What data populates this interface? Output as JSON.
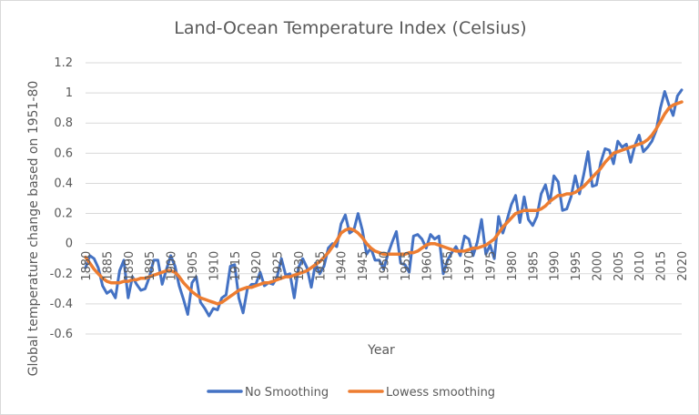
{
  "chart_data": {
    "type": "line",
    "title": "Land-Ocean Temperature Index (Celsius)",
    "xlabel": "Year",
    "ylabel": "Global temperature change based on 1951-80",
    "ylim": [
      -0.6,
      1.2
    ],
    "yticks": [
      "1.2",
      "1",
      "0.8",
      "0.6",
      "0.4",
      "0.2",
      "0",
      "-0.2",
      "-0.4",
      "-0.6"
    ],
    "ytick_values": [
      1.2,
      1.0,
      0.8,
      0.6,
      0.4,
      0.2,
      0,
      -0.2,
      -0.4,
      -0.6
    ],
    "xlim": [
      1880,
      2020
    ],
    "xticks": [
      "1880",
      "1885",
      "1890",
      "1895",
      "1900",
      "1905",
      "1910",
      "1915",
      "1920",
      "1925",
      "1930",
      "1935",
      "1940",
      "1945",
      "1950",
      "1955",
      "1960",
      "1965",
      "1970",
      "1975",
      "1980",
      "1985",
      "1990",
      "1995",
      "2000",
      "2005",
      "2010",
      "2015",
      "2020"
    ],
    "grid": true,
    "legend": "bottom",
    "x": [
      1880,
      1881,
      1882,
      1883,
      1884,
      1885,
      1886,
      1887,
      1888,
      1889,
      1890,
      1891,
      1892,
      1893,
      1894,
      1895,
      1896,
      1897,
      1898,
      1899,
      1900,
      1901,
      1902,
      1903,
      1904,
      1905,
      1906,
      1907,
      1908,
      1909,
      1910,
      1911,
      1912,
      1913,
      1914,
      1915,
      1916,
      1917,
      1918,
      1919,
      1920,
      1921,
      1922,
      1923,
      1924,
      1925,
      1926,
      1927,
      1928,
      1929,
      1930,
      1931,
      1932,
      1933,
      1934,
      1935,
      1936,
      1937,
      1938,
      1939,
      1940,
      1941,
      1942,
      1943,
      1944,
      1945,
      1946,
      1947,
      1948,
      1949,
      1950,
      1951,
      1952,
      1953,
      1954,
      1955,
      1956,
      1957,
      1958,
      1959,
      1960,
      1961,
      1962,
      1963,
      1964,
      1965,
      1966,
      1967,
      1968,
      1969,
      1970,
      1971,
      1972,
      1973,
      1974,
      1975,
      1976,
      1977,
      1978,
      1979,
      1980,
      1981,
      1982,
      1983,
      1984,
      1985,
      1986,
      1987,
      1988,
      1989,
      1990,
      1991,
      1992,
      1993,
      1994,
      1995,
      1996,
      1997,
      1998,
      1999,
      2000,
      2001,
      2002,
      2003,
      2004,
      2005,
      2006,
      2007,
      2008,
      2009,
      2010,
      2011,
      2012,
      2013,
      2014,
      2015,
      2016,
      2017,
      2018,
      2019,
      2020
    ],
    "series": [
      {
        "name": "No Smoothing",
        "color": "#4472c4",
        "values": [
          -0.16,
          -0.08,
          -0.1,
          -0.16,
          -0.28,
          -0.33,
          -0.31,
          -0.36,
          -0.18,
          -0.11,
          -0.36,
          -0.22,
          -0.27,
          -0.31,
          -0.3,
          -0.22,
          -0.11,
          -0.11,
          -0.27,
          -0.17,
          -0.08,
          -0.15,
          -0.28,
          -0.37,
          -0.47,
          -0.26,
          -0.22,
          -0.39,
          -0.43,
          -0.48,
          -0.43,
          -0.44,
          -0.36,
          -0.34,
          -0.15,
          -0.14,
          -0.36,
          -0.46,
          -0.3,
          -0.27,
          -0.27,
          -0.19,
          -0.28,
          -0.26,
          -0.27,
          -0.22,
          -0.1,
          -0.21,
          -0.2,
          -0.36,
          -0.16,
          -0.1,
          -0.16,
          -0.29,
          -0.13,
          -0.2,
          -0.15,
          -0.03,
          0.0,
          -0.02,
          0.13,
          0.19,
          0.07,
          0.09,
          0.2,
          0.09,
          -0.07,
          -0.03,
          -0.11,
          -0.11,
          -0.17,
          -0.07,
          0.01,
          0.08,
          -0.13,
          -0.14,
          -0.19,
          0.05,
          0.06,
          0.03,
          -0.03,
          0.06,
          0.03,
          0.05,
          -0.2,
          -0.11,
          -0.06,
          -0.02,
          -0.08,
          0.05,
          0.03,
          -0.08,
          0.01,
          0.16,
          -0.07,
          -0.01,
          -0.1,
          0.18,
          0.07,
          0.16,
          0.26,
          0.32,
          0.14,
          0.31,
          0.16,
          0.12,
          0.18,
          0.33,
          0.39,
          0.27,
          0.45,
          0.41,
          0.22,
          0.23,
          0.31,
          0.45,
          0.33,
          0.46,
          0.61,
          0.38,
          0.39,
          0.54,
          0.63,
          0.62,
          0.53,
          0.68,
          0.64,
          0.66,
          0.54,
          0.65,
          0.72,
          0.61,
          0.64,
          0.68,
          0.75,
          0.9,
          1.01,
          0.92,
          0.85,
          0.98,
          1.02
        ]
      },
      {
        "name": "Lowess smoothing",
        "color": "#ed7d31",
        "values": [
          -0.09,
          -0.13,
          -0.17,
          -0.2,
          -0.23,
          -0.25,
          -0.26,
          -0.26,
          -0.26,
          -0.25,
          -0.25,
          -0.24,
          -0.24,
          -0.23,
          -0.23,
          -0.22,
          -0.21,
          -0.2,
          -0.19,
          -0.18,
          -0.18,
          -0.19,
          -0.22,
          -0.26,
          -0.29,
          -0.32,
          -0.34,
          -0.36,
          -0.37,
          -0.38,
          -0.39,
          -0.4,
          -0.39,
          -0.37,
          -0.35,
          -0.33,
          -0.31,
          -0.3,
          -0.29,
          -0.29,
          -0.28,
          -0.27,
          -0.26,
          -0.26,
          -0.25,
          -0.24,
          -0.23,
          -0.22,
          -0.22,
          -0.21,
          -0.2,
          -0.19,
          -0.18,
          -0.16,
          -0.14,
          -0.12,
          -0.09,
          -0.06,
          -0.02,
          0.02,
          0.07,
          0.09,
          0.1,
          0.09,
          0.07,
          0.04,
          0.0,
          -0.03,
          -0.05,
          -0.06,
          -0.07,
          -0.07,
          -0.07,
          -0.07,
          -0.07,
          -0.07,
          -0.06,
          -0.06,
          -0.05,
          -0.03,
          -0.01,
          0.0,
          0.0,
          -0.01,
          -0.02,
          -0.03,
          -0.04,
          -0.05,
          -0.05,
          -0.05,
          -0.04,
          -0.03,
          -0.03,
          -0.02,
          -0.01,
          0.01,
          0.03,
          0.07,
          0.11,
          0.14,
          0.17,
          0.2,
          0.21,
          0.22,
          0.22,
          0.22,
          0.22,
          0.23,
          0.25,
          0.28,
          0.3,
          0.32,
          0.32,
          0.33,
          0.33,
          0.34,
          0.36,
          0.38,
          0.41,
          0.44,
          0.47,
          0.5,
          0.54,
          0.57,
          0.6,
          0.61,
          0.62,
          0.63,
          0.64,
          0.65,
          0.66,
          0.67,
          0.69,
          0.72,
          0.76,
          0.81,
          0.86,
          0.9,
          0.92,
          0.93,
          0.94
        ]
      }
    ]
  }
}
